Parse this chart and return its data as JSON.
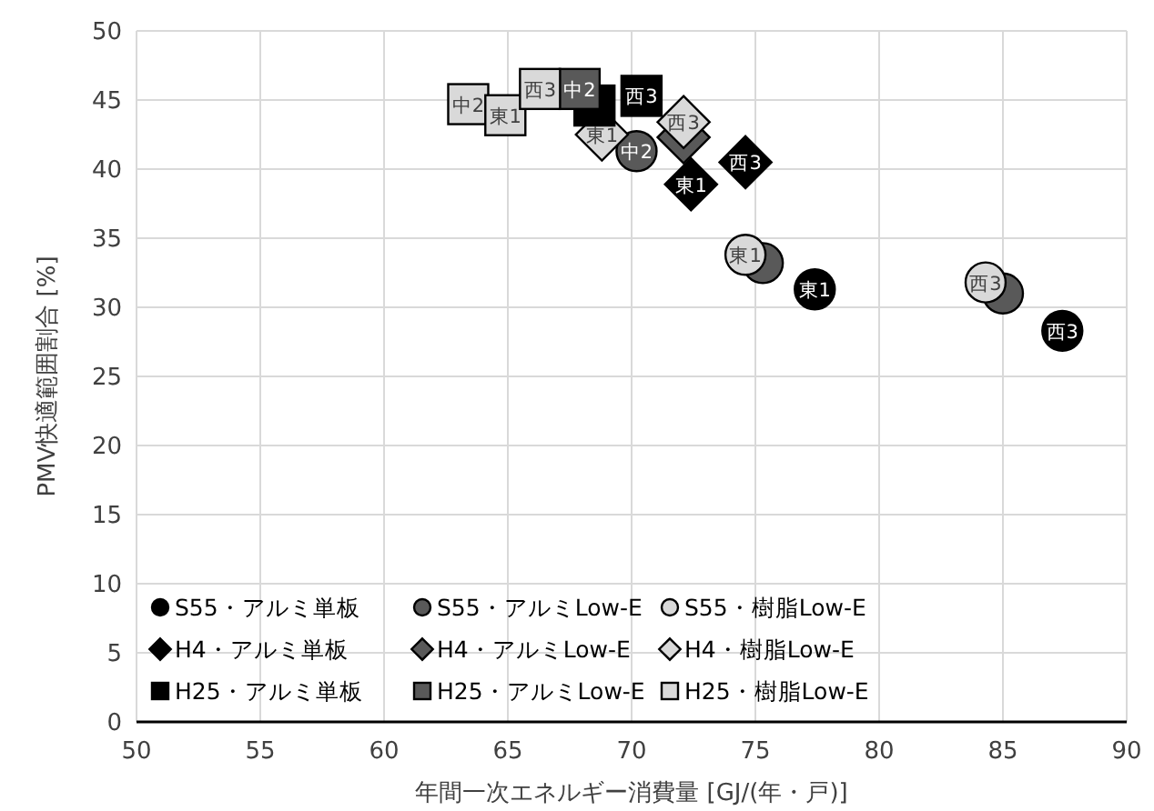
{
  "chart_data": {
    "type": "scatter",
    "xlabel": "年間一次エネルギー消費量 [GJ/(年・戸)]",
    "ylabel": "PMV快適範囲割合 [%]",
    "xlim": [
      50,
      90
    ],
    "ylim": [
      0,
      50
    ],
    "xticks": [
      50,
      55,
      60,
      65,
      70,
      75,
      80,
      85,
      90
    ],
    "yticks": [
      0,
      5,
      10,
      15,
      20,
      25,
      30,
      35,
      40,
      45,
      50
    ],
    "grid": true,
    "legend": "bottom left",
    "series": [
      {
        "name": "S55・アルミ単板",
        "color": "#000000",
        "marker": "circle",
        "x": [
          77.4,
          87.4
        ],
        "values": [
          31.3,
          28.3
        ]
      },
      {
        "name": "S55・アルミLow-E",
        "color": "#595959",
        "marker": "circle",
        "x": [
          70.2,
          75.3,
          85.0
        ],
        "values": [
          41.3,
          33.2,
          31.0
        ]
      },
      {
        "name": "S55・樹脂Low-E",
        "color": "#d9d9d9",
        "marker": "circle",
        "x": [
          74.6,
          84.3
        ],
        "values": [
          33.8,
          31.8
        ]
      },
      {
        "name": "H4・アルミ単板",
        "color": "#000000",
        "marker": "diamond",
        "x": [
          72.4,
          74.6
        ],
        "values": [
          38.9,
          40.5
        ]
      },
      {
        "name": "H4・アルミLow-E",
        "color": "#595959",
        "marker": "diamond",
        "x": [
          72.1
        ],
        "values": [
          42.3
        ]
      },
      {
        "name": "H4・樹脂Low-E",
        "color": "#d9d9d9",
        "marker": "diamond",
        "x": [
          68.8,
          72.1
        ],
        "values": [
          42.5,
          43.4
        ]
      },
      {
        "name": "H25・アルミ単板",
        "color": "#000000",
        "marker": "square",
        "x": [
          68.5,
          70.4
        ],
        "values": [
          44.6,
          45.3
        ]
      },
      {
        "name": "H25・アルミLow-E",
        "color": "#595959",
        "marker": "square",
        "x": [
          67.9
        ],
        "values": [
          45.8
        ]
      },
      {
        "name": "H25・樹脂Low-E",
        "color": "#d9d9d9",
        "marker": "square",
        "x": [
          63.4,
          64.9,
          66.3
        ],
        "values": [
          44.7,
          43.9,
          45.8
        ]
      }
    ],
    "annotations": [
      {
        "text": "東1",
        "x": 77.4,
        "y": 31.3
      },
      {
        "text": "西3",
        "x": 87.4,
        "y": 28.3
      },
      {
        "text": "中2",
        "x": 70.2,
        "y": 41.3
      },
      {
        "text": "東1",
        "x": 74.6,
        "y": 33.8
      },
      {
        "text": "西3",
        "x": 84.3,
        "y": 31.8
      },
      {
        "text": "東1",
        "x": 72.4,
        "y": 38.9
      },
      {
        "text": "西3",
        "x": 74.6,
        "y": 40.5
      },
      {
        "text": "東1",
        "x": 68.8,
        "y": 42.5
      },
      {
        "text": "西3",
        "x": 72.1,
        "y": 43.4
      },
      {
        "text": "西3",
        "x": 70.4,
        "y": 45.3
      },
      {
        "text": "中2",
        "x": 67.9,
        "y": 45.8
      },
      {
        "text": "中2",
        "x": 63.4,
        "y": 44.7
      },
      {
        "text": "東1",
        "x": 64.9,
        "y": 43.9
      },
      {
        "text": "西3",
        "x": 66.3,
        "y": 45.8
      }
    ]
  }
}
